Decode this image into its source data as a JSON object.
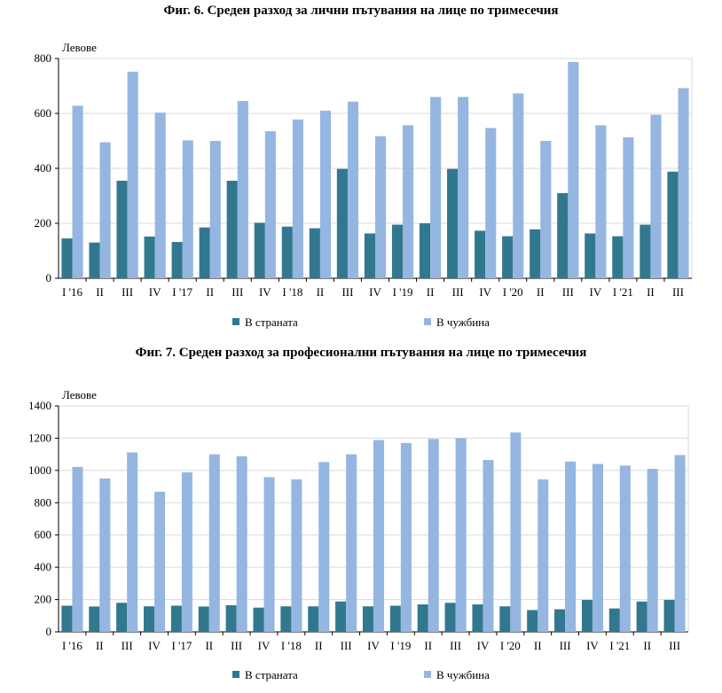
{
  "colors": {
    "domestic": "#31788F",
    "abroad": "#95B6E0",
    "grid": "#D9D9D9"
  },
  "chart_data": [
    {
      "type": "bar",
      "title": "Фиг. 6. Среден разход за лични пътувания на лице по тримесечия",
      "ylabel": "Левове",
      "ylim": [
        0,
        800
      ],
      "yticks": [
        0,
        200,
        400,
        600,
        800
      ],
      "grid": true,
      "legend_placement": "bottom",
      "categories": [
        "I '16",
        "II",
        "III",
        "IV",
        "I '17",
        "II",
        "III",
        "IV",
        "I '18",
        "II",
        "III",
        "IV",
        "I '19",
        "II",
        "III",
        "IV",
        "I '20",
        "II",
        "III",
        "IV",
        "I '21",
        "II",
        "III"
      ],
      "series": [
        {
          "name": "В страната",
          "values": [
            145,
            130,
            355,
            152,
            132,
            185,
            355,
            202,
            188,
            182,
            398,
            163,
            195,
            200,
            398,
            173,
            153,
            178,
            310,
            163,
            153,
            195,
            388
          ]
        },
        {
          "name": "В чужбина",
          "values": [
            628,
            495,
            752,
            603,
            502,
            500,
            645,
            535,
            578,
            610,
            643,
            517,
            557,
            660,
            660,
            547,
            673,
            500,
            787,
            557,
            513,
            595,
            692
          ]
        }
      ]
    },
    {
      "type": "bar",
      "title": "Фиг. 7. Среден разход за професионални пътувания на лице по тримесечия",
      "ylabel": "Левове",
      "ylim": [
        0,
        1400
      ],
      "yticks": [
        0,
        200,
        400,
        600,
        800,
        1000,
        1200,
        1400
      ],
      "grid": true,
      "legend_placement": "bottom",
      "categories": [
        "I '16",
        "II",
        "III",
        "IV",
        "I '17",
        "II",
        "III",
        "IV",
        "I '18",
        "II",
        "III",
        "IV",
        "I '19",
        "II",
        "III",
        "IV",
        "I '20",
        "II",
        "III",
        "IV",
        "I '21",
        "II",
        "III"
      ],
      "series": [
        {
          "name": "В страната",
          "values": [
            162,
            157,
            180,
            158,
            162,
            157,
            165,
            150,
            158,
            158,
            188,
            158,
            162,
            170,
            180,
            170,
            158,
            135,
            140,
            198,
            145,
            188,
            198
          ]
        },
        {
          "name": "В чужбина",
          "values": [
            1022,
            950,
            1112,
            868,
            988,
            1100,
            1088,
            958,
            945,
            1052,
            1100,
            1188,
            1170,
            1195,
            1200,
            1065,
            1235,
            945,
            1055,
            1040,
            1030,
            1010,
            1095
          ]
        }
      ]
    }
  ]
}
